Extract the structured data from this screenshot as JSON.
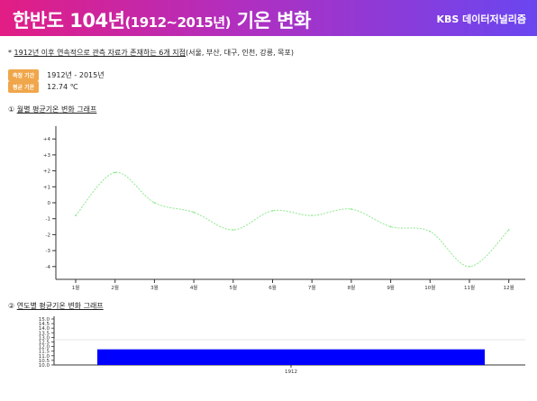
{
  "header": {
    "title_main": "한반도 104년",
    "title_years": "(1912~2015년)",
    "title_tail": " 기온 변화",
    "brand": "KBS 데이터저널리즘"
  },
  "note": {
    "prefix": "* ",
    "underlined": "1912년 이후 연속적으로 관측 자료가 존재하는 6개 지점",
    "suffix": "(서울, 부산, 대구, 인천, 강릉, 목포)"
  },
  "info": {
    "period_label": "측정 기간",
    "period_value": "1912년 - 2015년",
    "avg_label": "평균 기온",
    "avg_value": "12.74 ℃"
  },
  "section1": {
    "num": "①",
    "label": "월별 평균기온 변화 그래프"
  },
  "section2": {
    "num": "②",
    "label": "연도별 평균기온 변화 그래프"
  },
  "chart_data": [
    {
      "type": "line",
      "categories": [
        "1월",
        "2월",
        "3월",
        "4월",
        "5월",
        "6월",
        "7월",
        "8월",
        "9월",
        "10월",
        "11월",
        "12월"
      ],
      "series": [
        {
          "values": [
            -0.8,
            1.9,
            0.0,
            -0.6,
            -1.7,
            -0.5,
            -0.8,
            -0.4,
            -1.5,
            -1.8,
            -4.0,
            -1.7
          ]
        }
      ],
      "ylim": [
        -4.5,
        4.5
      ],
      "yticks": [
        "+4",
        "+3",
        "+2",
        "+1",
        "0",
        "-1",
        "-2",
        "-3",
        "-4"
      ],
      "line_color": "#8ee88e"
    },
    {
      "type": "bar",
      "categories": [
        "1912"
      ],
      "values": [
        11.7
      ],
      "ylim": [
        10.0,
        15.0
      ],
      "yticks": [
        "15.0",
        "14.5",
        "14.0",
        "13.5",
        "13.0",
        "12.5",
        "12.0",
        "11.5",
        "11.0",
        "10.5",
        "10.0"
      ],
      "reference_line": 12.74,
      "bar_color": "#0000ff"
    }
  ]
}
